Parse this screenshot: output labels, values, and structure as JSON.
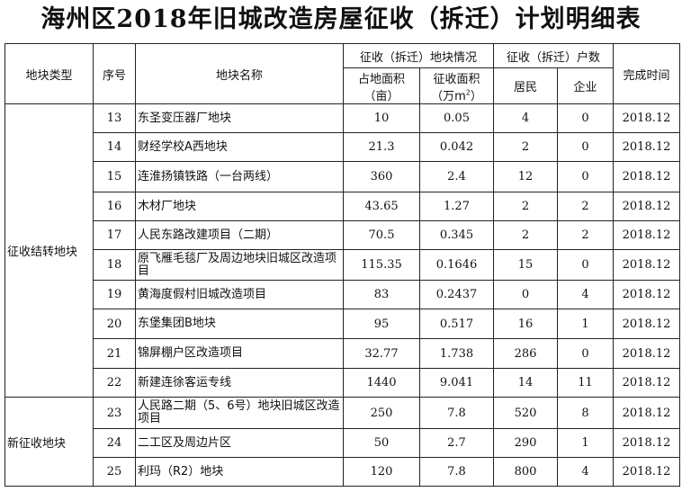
{
  "title": "海州区2018年旧城改造房屋征收（拆迁）计划明细表",
  "headers": {
    "type": "地块类型",
    "seq": "序号",
    "name": "地块名称",
    "area_group": "征收（拆迁）地块情况",
    "land_area": "占地面积（亩）",
    "collect_area_prefix": "征收面积（万m",
    "collect_area_sup": "2",
    "collect_area_suffix": "）",
    "household_group": "征收（拆迁）户数",
    "residents": "居民",
    "enterprises": "企业",
    "finish": "完成时间"
  },
  "groups": [
    {
      "label": "征收结转地块"
    },
    {
      "label": "新征收地块"
    }
  ],
  "rows": [
    {
      "seq": "13",
      "name": "东圣变压器厂地块",
      "land": "10",
      "collect": "0.05",
      "residents": "4",
      "enterprises": "0",
      "finish": "2018.12"
    },
    {
      "seq": "14",
      "name": "财经学校A西地块",
      "land": "21.3",
      "collect": "0.042",
      "residents": "2",
      "enterprises": "0",
      "finish": "2018.12"
    },
    {
      "seq": "15",
      "name": "连淮扬镇铁路（一台两线）",
      "land": "360",
      "collect": "2.4",
      "residents": "12",
      "enterprises": "0",
      "finish": "2018.12"
    },
    {
      "seq": "16",
      "name": "木材厂地块",
      "land": "43.65",
      "collect": "1.27",
      "residents": "2",
      "enterprises": "2",
      "finish": "2018.12"
    },
    {
      "seq": "17",
      "name": "人民东路改建项目（二期）",
      "land": "70.5",
      "collect": "0.345",
      "residents": "2",
      "enterprises": "2",
      "finish": "2018.12"
    },
    {
      "seq": "18",
      "name": "原飞雁毛毯厂及周边地块旧城区改造项目",
      "land": "115.35",
      "collect": "0.1646",
      "residents": "15",
      "enterprises": "0",
      "finish": "2018.12"
    },
    {
      "seq": "19",
      "name": "黄海度假村旧城改造项目",
      "land": "83",
      "collect": "0.2437",
      "residents": "0",
      "enterprises": "4",
      "finish": "2018.12"
    },
    {
      "seq": "20",
      "name": "东堡集团B地块",
      "land": "95",
      "collect": "0.517",
      "residents": "16",
      "enterprises": "1",
      "finish": "2018.12"
    },
    {
      "seq": "21",
      "name": "锦屏棚户区改造项目",
      "land": "32.77",
      "collect": "1.738",
      "residents": "286",
      "enterprises": "0",
      "finish": "2018.12"
    },
    {
      "seq": "22",
      "name": "新建连徐客运专线",
      "land": "1440",
      "collect": "9.041",
      "residents": "14",
      "enterprises": "11",
      "finish": "2018.12"
    },
    {
      "seq": "23",
      "name": "人民路二期（5、6号）地块旧城区改造项目",
      "land": "250",
      "collect": "7.8",
      "residents": "520",
      "enterprises": "8",
      "finish": "2018.12"
    },
    {
      "seq": "24",
      "name": "二工区及周边片区",
      "land": "50",
      "collect": "2.7",
      "residents": "290",
      "enterprises": "1",
      "finish": "2018.12"
    },
    {
      "seq": "25",
      "name": "利玛（R2）地块",
      "land": "120",
      "collect": "7.8",
      "residents": "800",
      "enterprises": "4",
      "finish": "2018.12"
    }
  ]
}
